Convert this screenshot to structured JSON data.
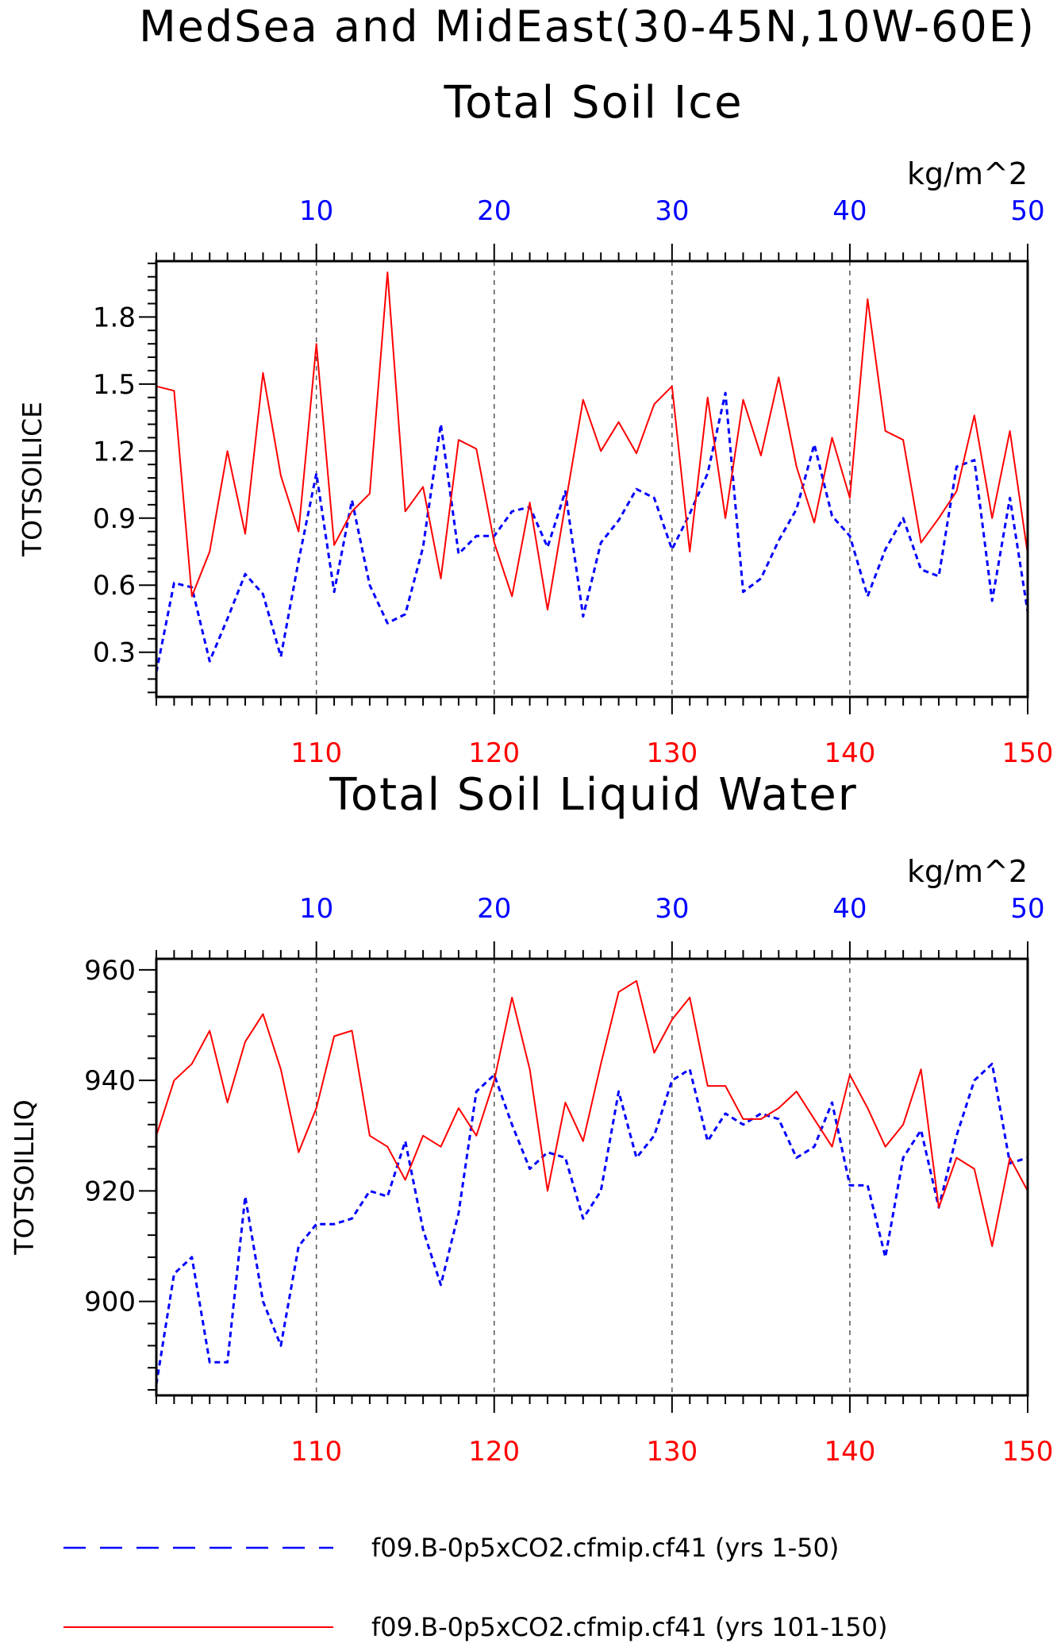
{
  "figure": {
    "title_line1": "MedSea and MidEast(30-45N,10W-60E)",
    "legend": [
      {
        "label": "f09.B-0p5xCO2.cfmip.cf41 (yrs 1-50)",
        "color": "#0000ff",
        "style": "dashed"
      },
      {
        "label": "f09.B-0p5xCO2.cfmip.cf41 (yrs 101-150)",
        "color": "#ff0000",
        "style": "solid"
      }
    ]
  },
  "chart_data": [
    {
      "type": "line",
      "title": "Total Soil Ice",
      "ylabel": "TOTSOILICE",
      "units": "kg/m^2",
      "ylim": [
        0.1,
        2.05
      ],
      "yticks": [
        0.3,
        0.6,
        0.9,
        1.2,
        1.5,
        1.8
      ],
      "ytick_labels": [
        "0.3",
        "0.6",
        "0.9",
        "1.2",
        "1.5",
        "1.8"
      ],
      "x_top": {
        "range": [
          1,
          50
        ],
        "ticks": [
          10,
          20,
          30,
          40,
          50
        ],
        "color": "#0000ff"
      },
      "x_bottom": {
        "range": [
          101,
          150
        ],
        "ticks": [
          110,
          120,
          130,
          140,
          150
        ],
        "color": "#ff0000"
      },
      "grid": "vertical dashed at major x ticks",
      "series": [
        {
          "name": "f09.B-0p5xCO2.cfmip.cf41 (yrs 1-50)",
          "axis": "top",
          "color": "#0000ff",
          "style": "dashed",
          "x": [
            1,
            2,
            3,
            4,
            5,
            6,
            7,
            8,
            9,
            10,
            11,
            12,
            13,
            14,
            15,
            16,
            17,
            18,
            19,
            20,
            21,
            22,
            23,
            24,
            25,
            26,
            27,
            28,
            29,
            30,
            31,
            32,
            33,
            34,
            35,
            36,
            37,
            38,
            39,
            40,
            41,
            42,
            43,
            44,
            45,
            46,
            47,
            48,
            49,
            50
          ],
          "values": [
            0.21,
            0.61,
            0.59,
            0.26,
            0.45,
            0.65,
            0.56,
            0.28,
            0.71,
            1.1,
            0.57,
            0.98,
            0.6,
            0.43,
            0.47,
            0.77,
            1.32,
            0.74,
            0.82,
            0.82,
            0.93,
            0.95,
            0.77,
            1.02,
            0.46,
            0.79,
            0.89,
            1.03,
            0.99,
            0.76,
            0.92,
            1.1,
            1.46,
            0.57,
            0.63,
            0.8,
            0.94,
            1.23,
            0.91,
            0.82,
            0.55,
            0.76,
            0.9,
            0.67,
            0.64,
            1.13,
            1.16,
            0.53,
            0.99,
            0.48
          ]
        },
        {
          "name": "f09.B-0p5xCO2.cfmip.cf41 (yrs 101-150)",
          "axis": "bottom",
          "color": "#ff0000",
          "style": "solid",
          "x": [
            101,
            102,
            103,
            104,
            105,
            106,
            107,
            108,
            109,
            110,
            111,
            112,
            113,
            114,
            115,
            116,
            117,
            118,
            119,
            120,
            121,
            122,
            123,
            124,
            125,
            126,
            127,
            128,
            129,
            130,
            131,
            132,
            133,
            134,
            135,
            136,
            137,
            138,
            139,
            140,
            141,
            142,
            143,
            144,
            145,
            146,
            147,
            148,
            149,
            150
          ],
          "values": [
            1.49,
            1.47,
            0.55,
            0.75,
            1.2,
            0.83,
            1.55,
            1.09,
            0.84,
            1.68,
            0.78,
            0.93,
            1.01,
            2.0,
            0.93,
            1.04,
            0.63,
            1.25,
            1.21,
            0.79,
            0.55,
            0.97,
            0.49,
            0.96,
            1.43,
            1.2,
            1.33,
            1.19,
            1.41,
            1.49,
            0.75,
            1.44,
            0.9,
            1.43,
            1.18,
            1.53,
            1.13,
            0.88,
            1.26,
            0.99,
            1.88,
            1.29,
            1.25,
            0.79,
            0.9,
            1.02,
            1.36,
            0.9,
            1.29,
            0.74
          ]
        }
      ]
    },
    {
      "type": "line",
      "title": "Total Soil Liquid Water",
      "ylabel": "TOTSOILLIQ",
      "units": "kg/m^2",
      "ylim": [
        883,
        962
      ],
      "yticks": [
        900,
        920,
        940,
        960
      ],
      "ytick_labels": [
        "900",
        "920",
        "940",
        "960"
      ],
      "x_top": {
        "range": [
          1,
          50
        ],
        "ticks": [
          10,
          20,
          30,
          40,
          50
        ],
        "color": "#0000ff"
      },
      "x_bottom": {
        "range": [
          101,
          150
        ],
        "ticks": [
          110,
          120,
          130,
          140,
          150
        ],
        "color": "#ff0000"
      },
      "grid": "vertical dashed at major x ticks",
      "series": [
        {
          "name": "f09.B-0p5xCO2.cfmip.cf41 (yrs 1-50)",
          "axis": "top",
          "color": "#0000ff",
          "style": "dashed",
          "x": [
            1,
            2,
            3,
            4,
            5,
            6,
            7,
            8,
            9,
            10,
            11,
            12,
            13,
            14,
            15,
            16,
            17,
            18,
            19,
            20,
            21,
            22,
            23,
            24,
            25,
            26,
            27,
            28,
            29,
            30,
            31,
            32,
            33,
            34,
            35,
            36,
            37,
            38,
            39,
            40,
            41,
            42,
            43,
            44,
            45,
            46,
            47,
            48,
            49,
            50
          ],
          "values": [
            885,
            905,
            908,
            889,
            889,
            919,
            900,
            892,
            910,
            914,
            914,
            915,
            920,
            919,
            929,
            913,
            903,
            916,
            938,
            941,
            932,
            924,
            927,
            926,
            915,
            920,
            938,
            926,
            930,
            940,
            942,
            929,
            934,
            932,
            934,
            933,
            926,
            928,
            936,
            921,
            921,
            908,
            926,
            931,
            917,
            930,
            940,
            943,
            925,
            926
          ]
        },
        {
          "name": "f09.B-0p5xCO2.cfmip.cf41 (yrs 101-150)",
          "axis": "bottom",
          "color": "#ff0000",
          "style": "solid",
          "x": [
            101,
            102,
            103,
            104,
            105,
            106,
            107,
            108,
            109,
            110,
            111,
            112,
            113,
            114,
            115,
            116,
            117,
            118,
            119,
            120,
            121,
            122,
            123,
            124,
            125,
            126,
            127,
            128,
            129,
            130,
            131,
            132,
            133,
            134,
            135,
            136,
            137,
            138,
            139,
            140,
            141,
            142,
            143,
            144,
            145,
            146,
            147,
            148,
            149,
            150
          ],
          "values": [
            930,
            940,
            943,
            949,
            936,
            947,
            952,
            942,
            927,
            935,
            948,
            949,
            930,
            928,
            922,
            930,
            928,
            935,
            930,
            940,
            955,
            942,
            920,
            936,
            929,
            943,
            956,
            958,
            945,
            951,
            955,
            939,
            939,
            933,
            933,
            935,
            938,
            933,
            928,
            941,
            935,
            928,
            932,
            942,
            917,
            926,
            924,
            910,
            926,
            920
          ]
        }
      ]
    }
  ]
}
